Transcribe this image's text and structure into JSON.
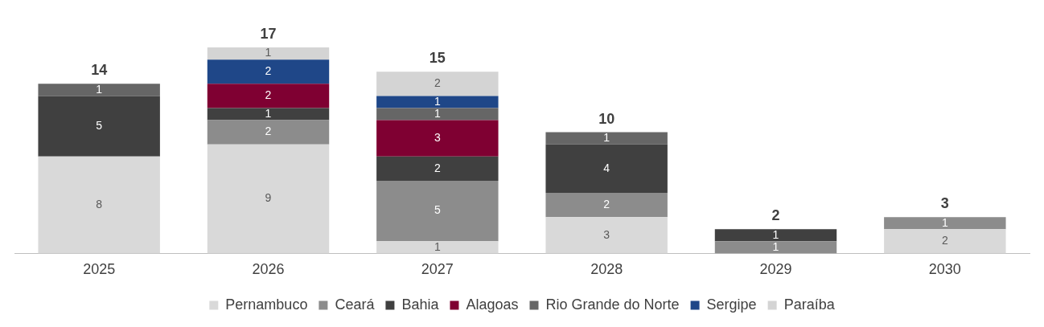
{
  "chart_data": {
    "type": "bar",
    "stacked": true,
    "categories": [
      "2025",
      "2026",
      "2027",
      "2028",
      "2029",
      "2030"
    ],
    "series": [
      {
        "name": "Pernambuco",
        "color": "#d9d9d9",
        "values": [
          8,
          9,
          1,
          3,
          null,
          2
        ]
      },
      {
        "name": "Ceará",
        "color": "#8c8c8c",
        "values": [
          null,
          2,
          5,
          2,
          1,
          1
        ]
      },
      {
        "name": "Bahia",
        "color": "#404040",
        "values": [
          5,
          1,
          2,
          4,
          1,
          null
        ]
      },
      {
        "name": "Alagoas",
        "color": "#7f0032",
        "values": [
          null,
          2,
          3,
          null,
          null,
          null
        ]
      },
      {
        "name": "Rio Grande do Norte",
        "color": "#666666",
        "values": [
          1,
          null,
          1,
          1,
          null,
          null
        ]
      },
      {
        "name": "Sergipe",
        "color": "#1f4788",
        "values": [
          null,
          2,
          1,
          null,
          null,
          null
        ]
      },
      {
        "name": "Paraíba",
        "color": "#d4d4d4",
        "values": [
          null,
          1,
          2,
          null,
          null,
          null
        ]
      }
    ],
    "totals": [
      "14",
      "17",
      "15",
      "10",
      "2",
      "3"
    ],
    "data_labels": true,
    "legend": "bottom",
    "grid": false
  }
}
